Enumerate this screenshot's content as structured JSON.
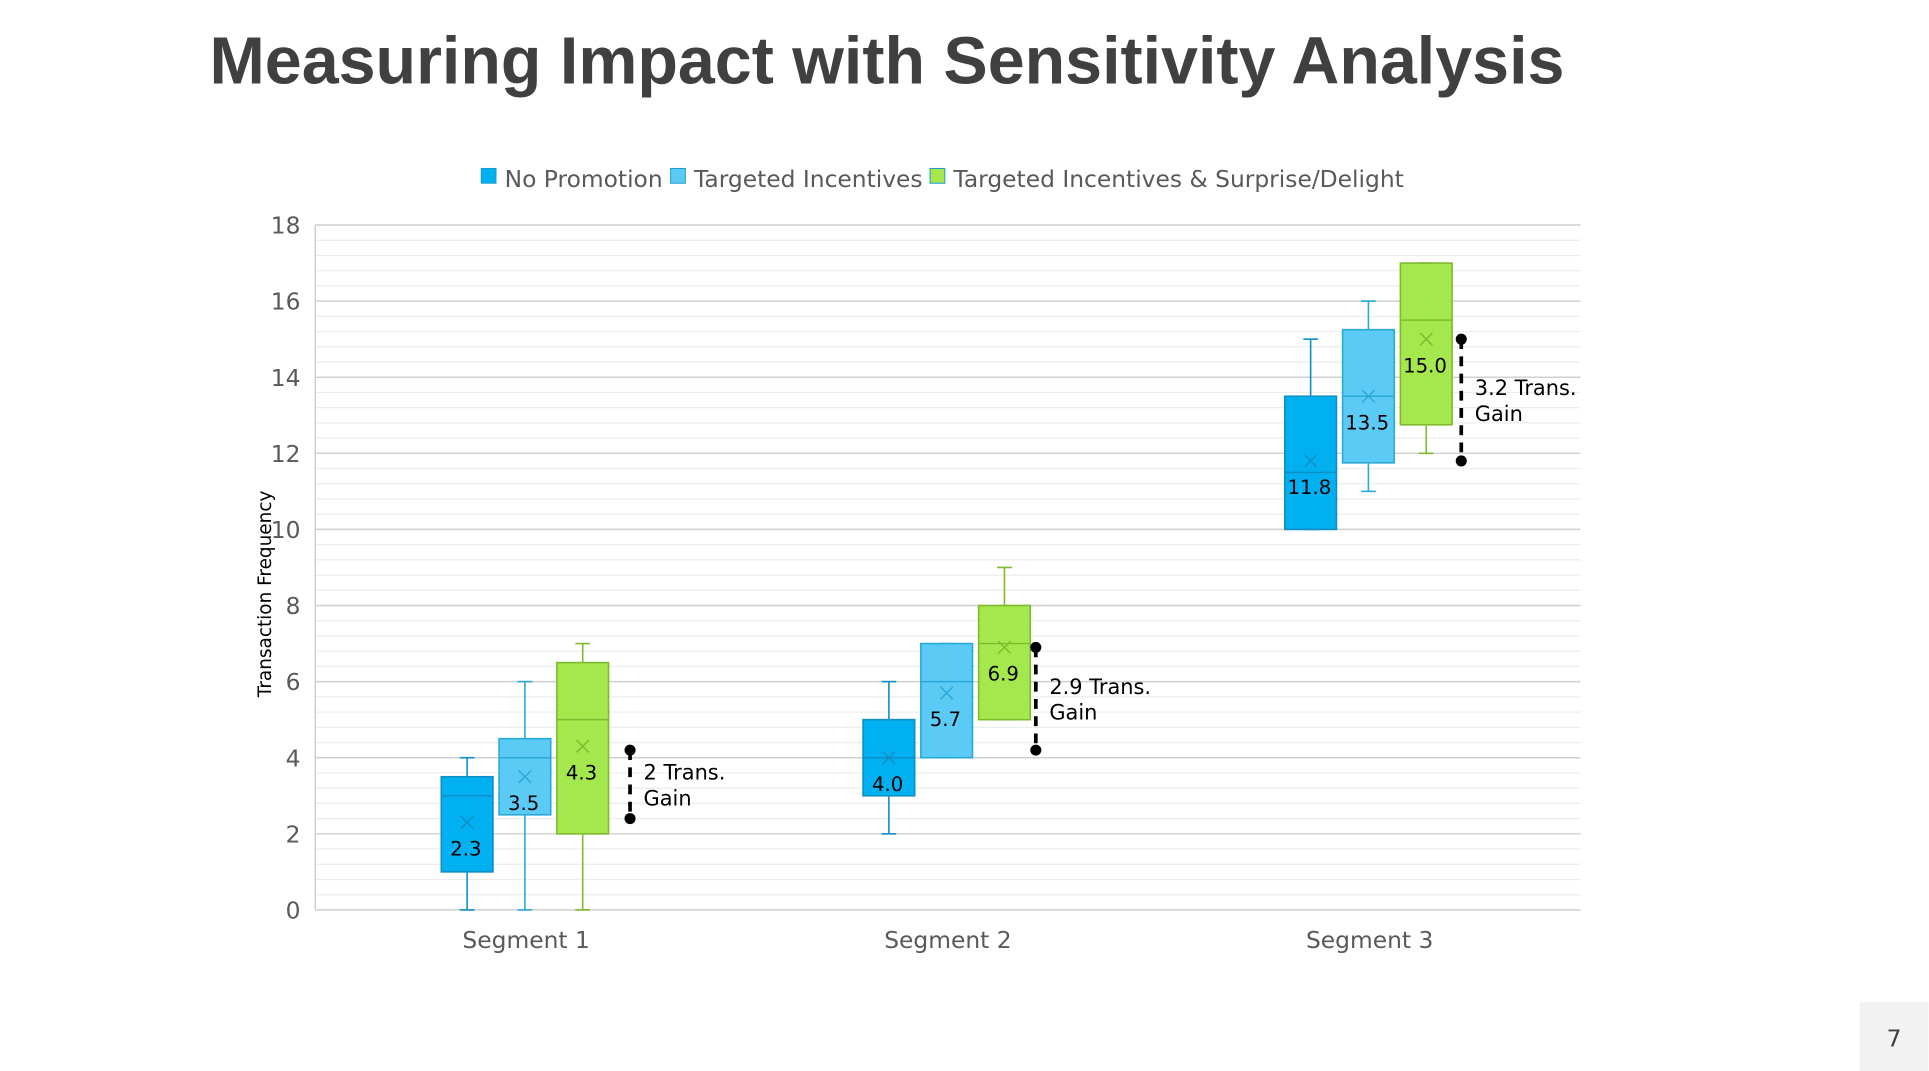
{
  "title": "Measuring Impact with Sensitivity Analysis",
  "page_number": "7",
  "chart_data": {
    "type": "box",
    "title": "",
    "xlabel": "",
    "ylabel": "Transaction Frequency",
    "ylim": [
      0,
      18
    ],
    "yticks": [
      0,
      2,
      4,
      6,
      8,
      10,
      12,
      14,
      16,
      18
    ],
    "grid": true,
    "legend_position": "top",
    "categories": [
      "Segment 1",
      "Segment 2",
      "Segment 3"
    ],
    "series": [
      {
        "name": "No Promotion",
        "color": "#00B0F0",
        "boxes": [
          {
            "min": 0,
            "q1": 1,
            "median": 3,
            "q3": 3.5,
            "max": 4,
            "mean": 2.3,
            "label": "2.3"
          },
          {
            "min": 2,
            "q1": 3,
            "median": 4,
            "q3": 5,
            "max": 6,
            "mean": 4.0,
            "label": "4.0"
          },
          {
            "min": 10,
            "q1": 10,
            "median": 11.5,
            "q3": 13.5,
            "max": 15,
            "mean": 11.8,
            "label": "11.8"
          }
        ]
      },
      {
        "name": "Targeted Incentives",
        "color": "#5BCBF5",
        "boxes": [
          {
            "min": 0,
            "q1": 2.5,
            "median": 4,
            "q3": 4.5,
            "max": 6,
            "mean": 3.5,
            "label": "3.5"
          },
          {
            "min": 4,
            "q1": 4,
            "median": 6,
            "q3": 7,
            "max": 7,
            "mean": 5.7,
            "label": "5.7"
          },
          {
            "min": 11,
            "q1": 11.75,
            "median": 13.5,
            "q3": 15.25,
            "max": 16,
            "mean": 13.5,
            "label": "13.5"
          }
        ]
      },
      {
        "name": "Targeted Incentives & Surprise/Delight",
        "color": "#A5E84E",
        "boxes": [
          {
            "min": 0,
            "q1": 2,
            "median": 5,
            "q3": 6.5,
            "max": 7,
            "mean": 4.3,
            "label": "4.3"
          },
          {
            "min": 5,
            "q1": 5,
            "median": 7,
            "q3": 8,
            "max": 9,
            "mean": 6.9,
            "label": "6.9"
          },
          {
            "min": 12,
            "q1": 12.75,
            "median": 15.5,
            "q3": 17,
            "max": 17,
            "mean": 15.0,
            "label": "15.0"
          }
        ]
      }
    ],
    "annotations": [
      {
        "category": "Segment 1",
        "from": 2.4,
        "to": 4.2,
        "lines": [
          "2 Trans.",
          "Gain"
        ]
      },
      {
        "category": "Segment 2",
        "from": 4.2,
        "to": 6.9,
        "lines": [
          "2.9 Trans.",
          "Gain"
        ]
      },
      {
        "category": "Segment 3",
        "from": 11.8,
        "to": 15.0,
        "lines": [
          "3.2 Trans.",
          "Gain"
        ]
      }
    ]
  }
}
